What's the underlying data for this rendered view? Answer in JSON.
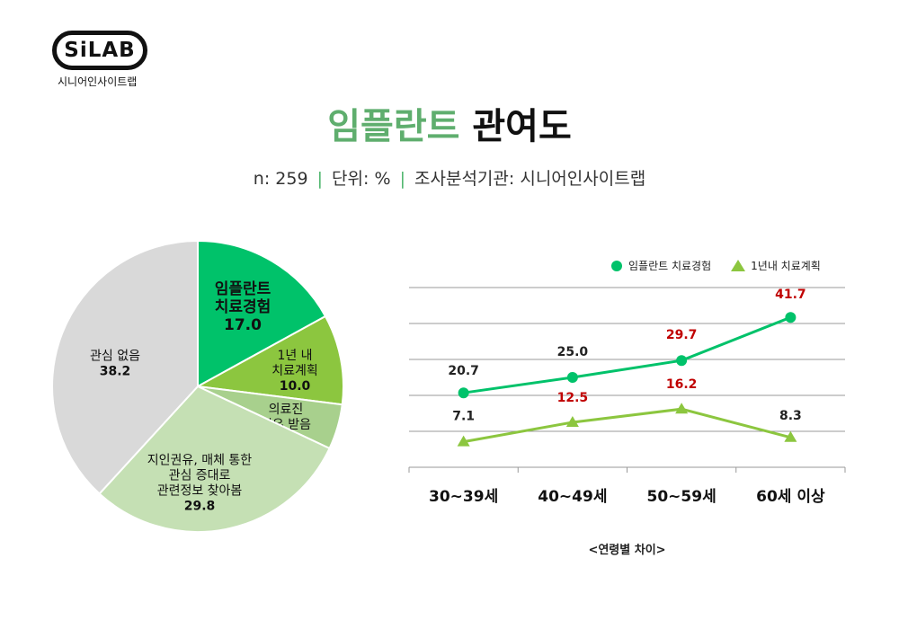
{
  "logo": {
    "badge": "SiLAB",
    "sub": "시니어인사이트랩"
  },
  "header": {
    "title_highlight": "임플란트",
    "title_rest": "관여도",
    "n": "n: 259",
    "unit": "단위: %",
    "org": "조사분석기관: 시니어인사이트랩",
    "sep": "|"
  },
  "colors": {
    "implant": "#00c26a",
    "plan": "#8cc63f",
    "recommend": "#a8d08d",
    "media": "#c5e0b4",
    "none": "#d9d9d9",
    "red": "#c00000",
    "title_green": "#5fae6e"
  },
  "chart_data": [
    {
      "type": "pie",
      "slices": [
        {
          "label": [
            "임플란트",
            "치료경험"
          ],
          "value": 17.0,
          "color": "#00c26a"
        },
        {
          "label": [
            "1년 내",
            "치료계획"
          ],
          "value": 10.0,
          "color": "#8cc63f"
        },
        {
          "label": [
            "의료진",
            "권유 받음"
          ],
          "value": 5.0,
          "color": "#a8d08d"
        },
        {
          "label": [
            "지인권유, 매체 통한",
            "관심 증대로",
            "관련정보 찾아봄"
          ],
          "value": 29.8,
          "color": "#c5e0b4"
        },
        {
          "label": [
            "관심 없음"
          ],
          "value": 38.2,
          "color": "#d9d9d9"
        }
      ]
    },
    {
      "type": "line",
      "categories": [
        "30~39세",
        "40~49세",
        "50~59세",
        "60세 이상"
      ],
      "series": [
        {
          "name": "임플란트 치료경험",
          "values": [
            20.7,
            25.0,
            29.7,
            41.7
          ],
          "marker": "circle",
          "color": "#00c26a",
          "label_colors": [
            "#222222",
            "#222222",
            "#c00000",
            "#c00000"
          ]
        },
        {
          "name": "1년내 치료계획",
          "values": [
            7.1,
            12.5,
            16.2,
            8.3
          ],
          "marker": "triangle",
          "color": "#8cc63f",
          "label_colors": [
            "#222222",
            "#c00000",
            "#c00000",
            "#222222"
          ]
        }
      ],
      "ylim": [
        0,
        50
      ],
      "grid": true,
      "legend": "top-right",
      "caption": "<연령별 차이>"
    }
  ]
}
